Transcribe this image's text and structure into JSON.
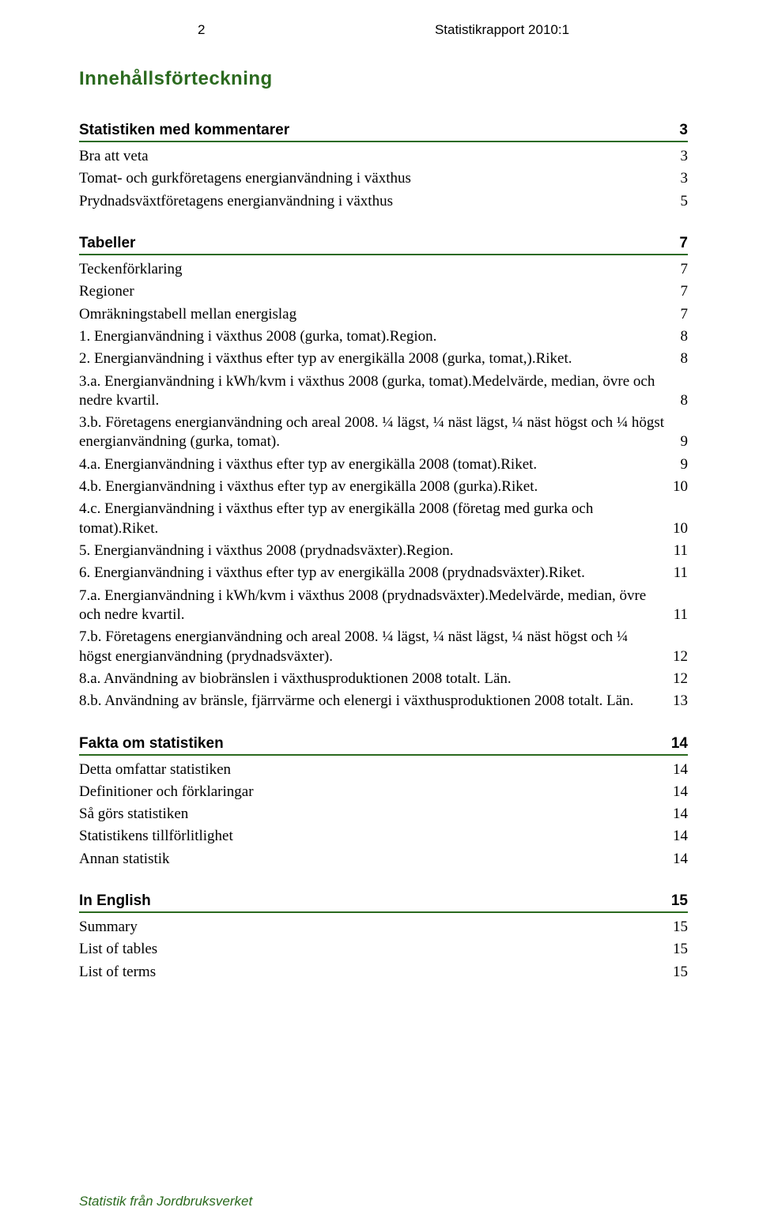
{
  "header": {
    "page_number": "2",
    "report_title": "Statistikrapport 2010:1"
  },
  "toc_title": "Innehållsförteckning",
  "sections": [
    {
      "title": "Statistiken med kommentarer",
      "page": "3",
      "items": [
        {
          "label": "Bra att veta",
          "page": "3"
        },
        {
          "label": "Tomat- och gurkföretagens energianvändning i växthus",
          "page": "3"
        },
        {
          "label": "Prydnadsväxtföretagens energianvändning i växthus",
          "page": "5"
        }
      ]
    },
    {
      "title": "Tabeller",
      "page": "7",
      "items": [
        {
          "label": "Teckenförklaring",
          "page": "7"
        },
        {
          "label": "Regioner",
          "page": "7"
        },
        {
          "label": "Omräkningstabell mellan energislag",
          "page": "7"
        },
        {
          "label": "1. Energianvändning i växthus 2008 (gurka, tomat).Region.",
          "page": "8"
        },
        {
          "label": "2. Energianvändning i växthus efter typ av energikälla 2008 (gurka, tomat,).Riket.",
          "page": "8"
        },
        {
          "label": "3.a. Energianvändning i kWh/kvm i växthus 2008 (gurka, tomat).Medelvärde, median, övre och nedre kvartil.",
          "page": "8"
        },
        {
          "label": "3.b. Företagens energianvändning och areal 2008. ¼ lägst, ¼ näst lägst, ¼ näst högst och ¼ högst energianvändning (gurka, tomat).",
          "page": "9"
        },
        {
          "label": "4.a. Energianvändning i växthus efter typ av energikälla 2008 (tomat).Riket.",
          "page": "9"
        },
        {
          "label": "4.b. Energianvändning i växthus efter typ av energikälla 2008 (gurka).Riket.",
          "page": "10"
        },
        {
          "label": "4.c. Energianvändning i växthus efter typ av energikälla 2008 (företag med gurka och tomat).Riket.",
          "page": "10"
        },
        {
          "label": "5. Energianvändning i växthus 2008 (prydnadsväxter).Region.",
          "page": "11"
        },
        {
          "label": "6. Energianvändning i växthus efter typ av energikälla 2008 (prydnadsväxter).Riket.",
          "page": "11"
        },
        {
          "label": "7.a. Energianvändning i kWh/kvm i växthus 2008 (prydnadsväxter).Medelvärde, median, övre och nedre kvartil.",
          "page": "11"
        },
        {
          "label": "7.b. Företagens energianvändning och areal 2008. ¼ lägst, ¼ näst lägst, ¼ näst högst och ¼ högst energianvändning (prydnadsväxter).",
          "page": "12"
        },
        {
          "label": "8.a. Användning av biobränslen i växthusproduktionen 2008 totalt. Län.",
          "page": "12"
        },
        {
          "label": "8.b. Användning av bränsle, fjärrvärme och elenergi i växthusproduktionen 2008 totalt. Län.",
          "page": "13"
        }
      ]
    },
    {
      "title": "Fakta om statistiken",
      "page": "14",
      "items": [
        {
          "label": "Detta omfattar statistiken",
          "page": "14"
        },
        {
          "label": "Definitioner och förklaringar",
          "page": "14"
        },
        {
          "label": "Så görs statistiken",
          "page": "14"
        },
        {
          "label": "Statistikens tillförlitlighet",
          "page": "14"
        },
        {
          "label": "Annan statistik",
          "page": "14"
        }
      ]
    },
    {
      "title": "In English",
      "page": "15",
      "items": [
        {
          "label": "Summary",
          "page": "15"
        },
        {
          "label": "List of tables",
          "page": "15"
        },
        {
          "label": "List of terms",
          "page": "15"
        }
      ]
    }
  ],
  "footer": "Statistik från Jordbruksverket",
  "colors": {
    "text": "#000000",
    "accent": "#2b6a1f",
    "background": "#ffffff"
  },
  "fonts": {
    "serif": "Times New Roman",
    "sans": "Arial"
  }
}
